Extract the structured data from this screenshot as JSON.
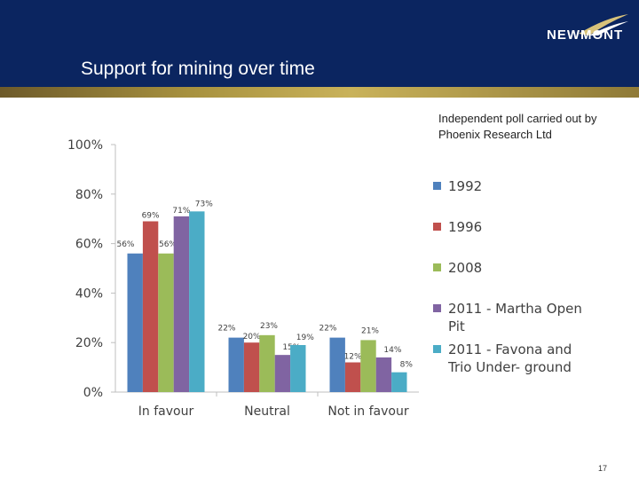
{
  "slide": {
    "title": "Support for mining over time",
    "logo_text": "NEWMONT",
    "note": "Independent poll carried out by Phoenix Research Ltd",
    "page_number": "17"
  },
  "colors": {
    "header": "#0b2560",
    "accent": "#b9a24b",
    "series": [
      "#4f81bd",
      "#c0504d",
      "#9bbb59",
      "#8064a2",
      "#4bacc6"
    ]
  },
  "chart_data": {
    "type": "bar",
    "categories": [
      "In favour",
      "Neutral",
      "Not in favour"
    ],
    "series": [
      {
        "name": "1992",
        "values": [
          56,
          22,
          22
        ]
      },
      {
        "name": "1996",
        "values": [
          69,
          20,
          12
        ]
      },
      {
        "name": "2008",
        "values": [
          56,
          23,
          21
        ]
      },
      {
        "name": "2011 - Martha Open Pit",
        "values": [
          71,
          15,
          14
        ]
      },
      {
        "name": "2011 - Favona and Trio Under- ground",
        "values": [
          73,
          19,
          8
        ]
      }
    ],
    "y_ticks": [
      "0%",
      "20%",
      "40%",
      "60%",
      "80%",
      "100%"
    ],
    "ylim": [
      0,
      100
    ],
    "value_suffix": "%",
    "grid": false,
    "legend_position": "right"
  }
}
